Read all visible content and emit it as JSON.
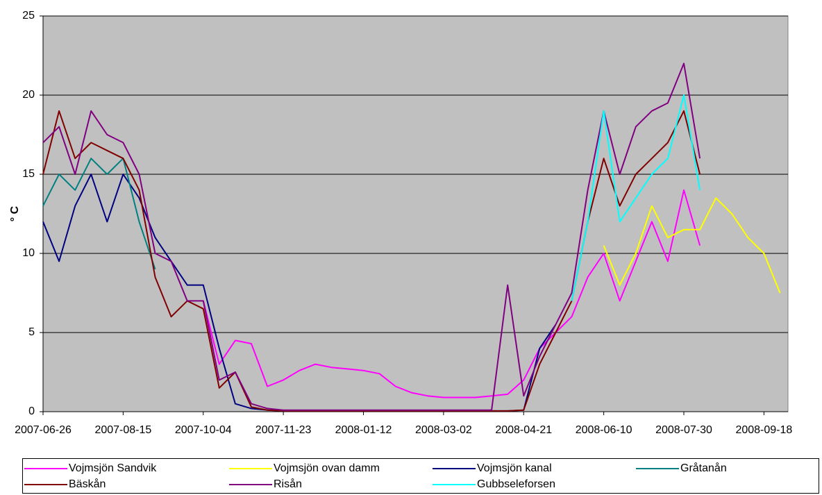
{
  "chart_data": {
    "type": "line",
    "y_label": "° C",
    "x": [
      "2007-06-26",
      "2007-07-06",
      "2007-07-16",
      "2007-07-26",
      "2007-08-05",
      "2007-08-15",
      "2007-08-25",
      "2007-09-04",
      "2007-09-14",
      "2007-09-24",
      "2007-10-04",
      "2007-10-14",
      "2007-10-24",
      "2007-11-03",
      "2007-11-13",
      "2007-11-23",
      "2007-12-03",
      "2007-12-13",
      "2007-12-23",
      "2008-01-02",
      "2008-01-12",
      "2008-01-22",
      "2008-02-01",
      "2008-02-11",
      "2008-02-21",
      "2008-03-02",
      "2008-03-12",
      "2008-03-22",
      "2008-04-01",
      "2008-04-11",
      "2008-04-21",
      "2008-05-01",
      "2008-05-11",
      "2008-05-21",
      "2008-05-31",
      "2008-06-10",
      "2008-06-20",
      "2008-06-30",
      "2008-07-10",
      "2008-07-20",
      "2008-07-30",
      "2008-08-09",
      "2008-08-19",
      "2008-08-29",
      "2008-09-08",
      "2008-09-18",
      "2008-09-28"
    ],
    "xlim": [
      "2007-06-26",
      "2008-10-03"
    ],
    "xticks": [
      "2007-06-26",
      "2007-08-15",
      "2007-10-04",
      "2007-11-23",
      "2008-01-12",
      "2008-03-02",
      "2008-04-21",
      "2008-06-10",
      "2008-07-30",
      "2008-09-18"
    ],
    "ylim": [
      0,
      25
    ],
    "yticks": [
      0,
      5,
      10,
      15,
      20,
      25
    ],
    "grid": true,
    "series": [
      {
        "name": "Vojmsjön Sandvik",
        "color": "#ff00ff",
        "values": [
          null,
          null,
          null,
          null,
          null,
          null,
          null,
          null,
          null,
          null,
          7,
          3,
          4.5,
          4.3,
          1.6,
          2.0,
          2.6,
          3.0,
          2.8,
          2.7,
          2.6,
          2.4,
          1.6,
          1.2,
          1.0,
          0.9,
          0.9,
          0.9,
          1.0,
          1.1,
          2.0,
          4.0,
          5.0,
          6.0,
          8.5,
          10,
          7,
          9.5,
          12,
          9.5,
          14,
          10.5,
          null,
          null,
          null,
          null,
          null
        ]
      },
      {
        "name": "Vojmsjön ovan damm",
        "color": "#ffff00",
        "values": [
          null,
          null,
          null,
          null,
          null,
          null,
          null,
          null,
          null,
          null,
          null,
          null,
          null,
          null,
          null,
          null,
          null,
          null,
          null,
          null,
          null,
          null,
          null,
          null,
          null,
          null,
          null,
          null,
          null,
          null,
          null,
          null,
          null,
          null,
          null,
          10.5,
          8,
          10,
          13,
          11,
          11.5,
          11.5,
          13.5,
          12.5,
          11,
          10,
          7.5
        ]
      },
      {
        "name": "Vojmsjön kanal",
        "color": "#000080",
        "values": [
          12,
          9.5,
          13,
          15,
          12,
          15,
          13.5,
          11,
          9.5,
          8,
          8,
          4,
          0.5,
          0.2,
          0.1,
          0.05,
          0.05,
          0.05,
          0.05,
          0.05,
          0.05,
          0.05,
          0.05,
          0.05,
          0.05,
          0.05,
          0.05,
          0.05,
          0.05,
          0.05,
          0.1,
          4,
          5.5,
          null,
          null,
          null,
          null,
          null,
          null,
          null,
          null,
          null,
          null,
          null,
          null,
          null,
          null
        ]
      },
      {
        "name": "Gråtanån",
        "color": "#008080",
        "values": [
          13,
          15,
          14,
          16,
          15,
          16,
          12,
          9,
          null,
          null,
          null,
          null,
          null,
          null,
          null,
          null,
          null,
          null,
          null,
          null,
          null,
          null,
          null,
          null,
          null,
          null,
          null,
          null,
          null,
          null,
          null,
          null,
          null,
          null,
          null,
          null,
          null,
          null,
          null,
          null,
          null,
          null,
          null,
          null,
          null,
          null,
          null
        ]
      },
      {
        "name": "Bäskån",
        "color": "#800000",
        "values": [
          15,
          19,
          16,
          17,
          16.5,
          16,
          14,
          8.5,
          6,
          7,
          6.5,
          1.5,
          2.5,
          0.3,
          0.1,
          0.05,
          0.05,
          0.05,
          0.05,
          0.05,
          0.05,
          0.05,
          0.05,
          0.05,
          0.05,
          0.05,
          0.05,
          0.05,
          0.05,
          0.05,
          0.1,
          3,
          5,
          7,
          12,
          16,
          13,
          15,
          16,
          17,
          19,
          15,
          null,
          null,
          null,
          null,
          null
        ]
      },
      {
        "name": "Risån",
        "color": "#800080",
        "values": [
          17,
          18,
          15,
          19,
          17.5,
          17,
          15,
          10,
          9.5,
          7,
          7,
          2,
          2.5,
          0.5,
          0.2,
          0.1,
          0.1,
          0.1,
          0.1,
          0.1,
          0.1,
          0.1,
          0.1,
          0.1,
          0.1,
          0.1,
          0.1,
          0.1,
          0.1,
          8,
          1,
          3.5,
          5.5,
          7.5,
          14,
          19,
          15,
          18,
          19,
          19.5,
          22,
          16,
          null,
          null,
          null,
          null,
          null
        ]
      },
      {
        "name": "Gubbseleforsen",
        "color": "#00ffff",
        "values": [
          null,
          null,
          null,
          null,
          null,
          null,
          null,
          null,
          null,
          null,
          null,
          null,
          null,
          null,
          null,
          null,
          null,
          null,
          null,
          null,
          null,
          null,
          null,
          null,
          null,
          null,
          null,
          null,
          null,
          null,
          null,
          null,
          null,
          7,
          12,
          19,
          12,
          13.5,
          15,
          16,
          20,
          14,
          null,
          null,
          null,
          null,
          null
        ]
      }
    ]
  }
}
